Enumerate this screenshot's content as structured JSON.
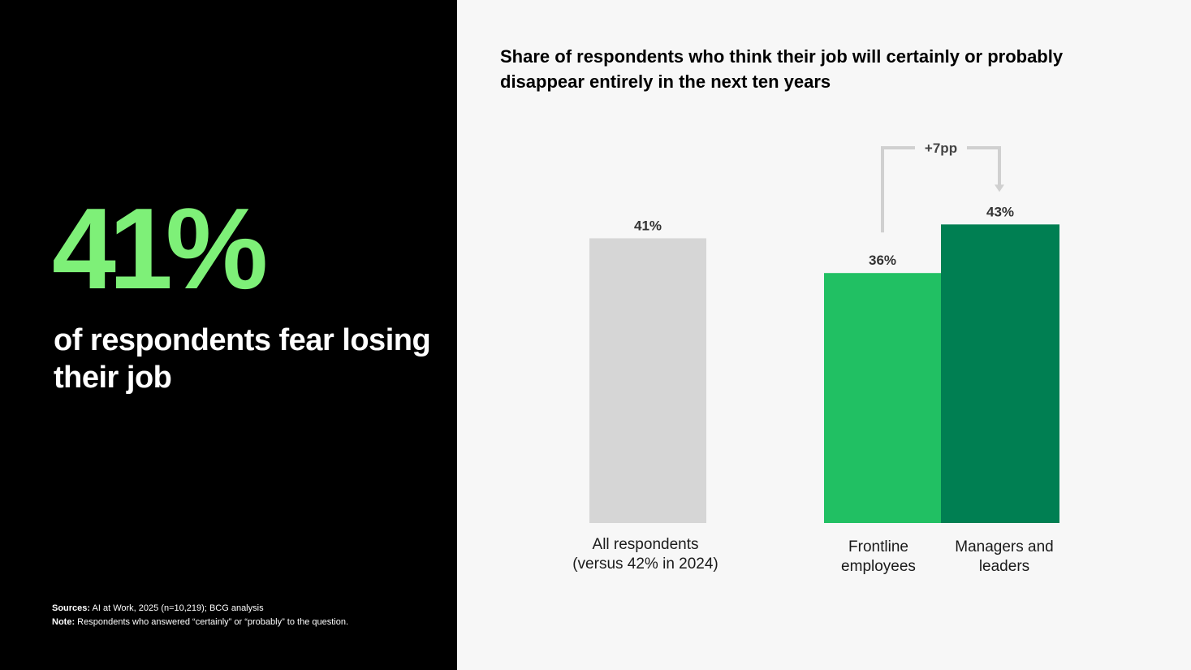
{
  "headline": {
    "stat": "41%",
    "caption": "of respondents fear losing their job"
  },
  "footnotes": {
    "sources_label": "Sources:",
    "sources_text": "AI at Work, 2025 (n=10,219); BCG analysis",
    "note_label": "Note:",
    "note_text": "Respondents who answered “certainly” or “probably” to the question."
  },
  "colors": {
    "left_background": "#000000",
    "stat_green": "#7ef078",
    "bar_all": "#d6d6d6",
    "bar_frontline": "#21c063",
    "bar_managers": "#007f52",
    "bracket": "#d0d0d0"
  },
  "chart_data": {
    "type": "bar",
    "title": "Share of respondents who think their job will certainly or probably disappear entirely in the next ten years",
    "categories": [
      [
        "All respondents",
        "(versus 42% in 2024)"
      ],
      [
        "Frontline",
        "employees"
      ],
      [
        "Managers and",
        "leaders"
      ]
    ],
    "values": [
      41,
      36,
      43
    ],
    "value_labels": [
      "41%",
      "36%",
      "43%"
    ],
    "unit": "%",
    "bar_colors": [
      "#d6d6d6",
      "#21c063",
      "#007f52"
    ],
    "annotation": {
      "label": "+7pp",
      "from_category": 1,
      "to_category": 2
    },
    "grid": false,
    "legend": "none"
  }
}
